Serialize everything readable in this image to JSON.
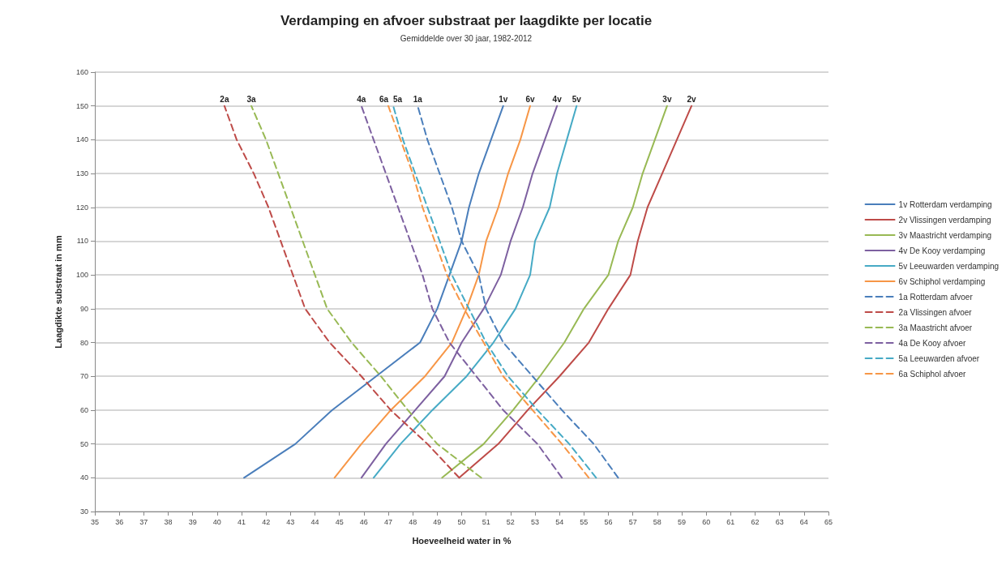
{
  "chart_data": {
    "type": "line",
    "title": "Verdamping en afvoer substraat per laagdikte per locatie",
    "subtitle": "Gemiddelde over 30 jaar, 1982-2012",
    "xlabel": "Hoeveelheid water in %",
    "ylabel": "Laagdikte substraat in mm",
    "xlim": [
      35,
      65
    ],
    "xticks": [
      35,
      36,
      37,
      38,
      39,
      40,
      41,
      42,
      43,
      44,
      45,
      46,
      47,
      48,
      49,
      50,
      51,
      52,
      53,
      54,
      55,
      56,
      57,
      58,
      59,
      60,
      61,
      62,
      63,
      64,
      65
    ],
    "ylim": [
      30,
      160
    ],
    "yticks": [
      30,
      40,
      50,
      60,
      70,
      80,
      90,
      100,
      110,
      120,
      130,
      140,
      150,
      160
    ],
    "grid": "y",
    "legend": "right",
    "marker": "none",
    "series": [
      {
        "name": "1v Rotterdam verdamping",
        "color": "#4a7ebb",
        "line_style": "solid",
        "x": [
          41.1,
          43.2,
          44.7,
          46.5,
          48.3,
          49.0,
          49.5,
          50.0,
          50.3,
          50.7,
          51.2,
          51.7
        ],
        "values": [
          40,
          50,
          60,
          70,
          80,
          90,
          100,
          110,
          120,
          130,
          140,
          150
        ]
      },
      {
        "name": "2v Vlissingen verdamping",
        "color": "#be4b48",
        "line_style": "solid",
        "x": [
          49.9,
          51.5,
          52.7,
          54.0,
          55.2,
          56.0,
          56.9,
          57.2,
          57.6,
          58.2,
          58.8,
          59.4
        ],
        "values": [
          40,
          50,
          60,
          70,
          80,
          90,
          100,
          110,
          120,
          130,
          140,
          150
        ]
      },
      {
        "name": "3v Maastricht verdamping",
        "color": "#98b954",
        "line_style": "solid",
        "x": [
          49.2,
          50.9,
          52.1,
          53.2,
          54.2,
          55.0,
          56.0,
          56.4,
          57.0,
          57.4,
          57.9,
          58.4
        ],
        "values": [
          40,
          50,
          60,
          70,
          80,
          90,
          100,
          110,
          120,
          130,
          140,
          150
        ]
      },
      {
        "name": "4v De Kooy verdamping",
        "color": "#7d60a0",
        "line_style": "solid",
        "x": [
          45.9,
          46.9,
          48.1,
          49.3,
          50.0,
          50.9,
          51.6,
          52.0,
          52.5,
          52.9,
          53.4,
          53.9
        ],
        "values": [
          40,
          50,
          60,
          70,
          80,
          90,
          100,
          110,
          120,
          130,
          140,
          150
        ]
      },
      {
        "name": "5v Leeuwarden verdamping",
        "color": "#46aac5",
        "line_style": "solid",
        "x": [
          46.4,
          47.5,
          48.8,
          50.2,
          51.3,
          52.2,
          52.8,
          53.0,
          53.6,
          53.9,
          54.3,
          54.7
        ],
        "values": [
          40,
          50,
          60,
          70,
          80,
          90,
          100,
          110,
          120,
          130,
          140,
          150
        ]
      },
      {
        "name": "6v Schiphol verdamping",
        "color": "#f79646",
        "line_style": "solid",
        "x": [
          44.8,
          45.9,
          47.1,
          48.5,
          49.6,
          50.2,
          50.7,
          51.0,
          51.5,
          51.9,
          52.4,
          52.8
        ],
        "values": [
          40,
          50,
          60,
          70,
          80,
          90,
          100,
          110,
          120,
          130,
          140,
          150
        ]
      },
      {
        "name": "1a Rotterdam afvoer",
        "color": "#4a7ebb",
        "line_style": "dashed",
        "x": [
          56.4,
          55.4,
          54.1,
          52.9,
          51.7,
          51.0,
          50.7,
          50.0,
          49.6,
          49.1,
          48.6,
          48.2
        ],
        "values": [
          40,
          50,
          60,
          70,
          80,
          90,
          100,
          110,
          120,
          130,
          140,
          150
        ]
      },
      {
        "name": "2a Vlissingen afvoer",
        "color": "#be4b48",
        "line_style": "dashed",
        "x": [
          49.9,
          48.6,
          47.1,
          45.9,
          44.6,
          43.6,
          43.1,
          42.6,
          42.1,
          41.5,
          40.8,
          40.3
        ],
        "values": [
          40,
          50,
          60,
          70,
          80,
          90,
          100,
          110,
          120,
          130,
          140,
          150
        ]
      },
      {
        "name": "3a Maastricht afvoer",
        "color": "#98b954",
        "line_style": "dashed",
        "x": [
          50.8,
          49.0,
          47.8,
          46.7,
          45.5,
          44.5,
          44.0,
          43.5,
          43.0,
          42.5,
          42.0,
          41.4
        ],
        "values": [
          40,
          50,
          60,
          70,
          80,
          90,
          100,
          110,
          120,
          130,
          140,
          150
        ]
      },
      {
        "name": "4a De Kooy afvoer",
        "color": "#7d60a0",
        "line_style": "dashed",
        "x": [
          54.1,
          53.1,
          51.7,
          50.6,
          49.5,
          48.8,
          48.4,
          47.9,
          47.4,
          46.9,
          46.4,
          45.9
        ],
        "values": [
          40,
          50,
          60,
          70,
          80,
          90,
          100,
          110,
          120,
          130,
          140,
          150
        ]
      },
      {
        "name": "5a Leeuwarden afvoer",
        "color": "#46aac5",
        "line_style": "dashed",
        "x": [
          55.5,
          54.4,
          53.1,
          51.9,
          51.0,
          50.3,
          49.6,
          49.1,
          48.6,
          48.1,
          47.6,
          47.2
        ],
        "values": [
          40,
          50,
          60,
          70,
          80,
          90,
          100,
          110,
          120,
          130,
          140,
          150
        ]
      },
      {
        "name": "6a Schiphol afvoer",
        "color": "#f79646",
        "line_style": "dashed",
        "x": [
          55.2,
          54.1,
          52.9,
          51.7,
          50.9,
          50.1,
          49.4,
          48.9,
          48.4,
          48.0,
          47.5,
          47.0
        ],
        "values": [
          40,
          50,
          60,
          70,
          80,
          90,
          100,
          110,
          120,
          130,
          140,
          150
        ]
      }
    ],
    "annotations": [
      {
        "text": "1v",
        "x": 51.7,
        "y": 150
      },
      {
        "text": "2v",
        "x": 59.4,
        "y": 150
      },
      {
        "text": "3v",
        "x": 58.4,
        "y": 150
      },
      {
        "text": "4v",
        "x": 53.9,
        "y": 150
      },
      {
        "text": "5v",
        "x": 54.7,
        "y": 150
      },
      {
        "text": "6v",
        "x": 52.8,
        "y": 150
      },
      {
        "text": "1a",
        "x": 48.2,
        "y": 150
      },
      {
        "text": "2a",
        "x": 40.3,
        "y": 150
      },
      {
        "text": "3a",
        "x": 41.4,
        "y": 150
      },
      {
        "text": "4a",
        "x": 45.9,
        "y": 150
      },
      {
        "text": "5a",
        "x": 47.2,
        "y": 150
      },
      {
        "text": "6a",
        "x": 47.0,
        "y": 150
      }
    ]
  }
}
